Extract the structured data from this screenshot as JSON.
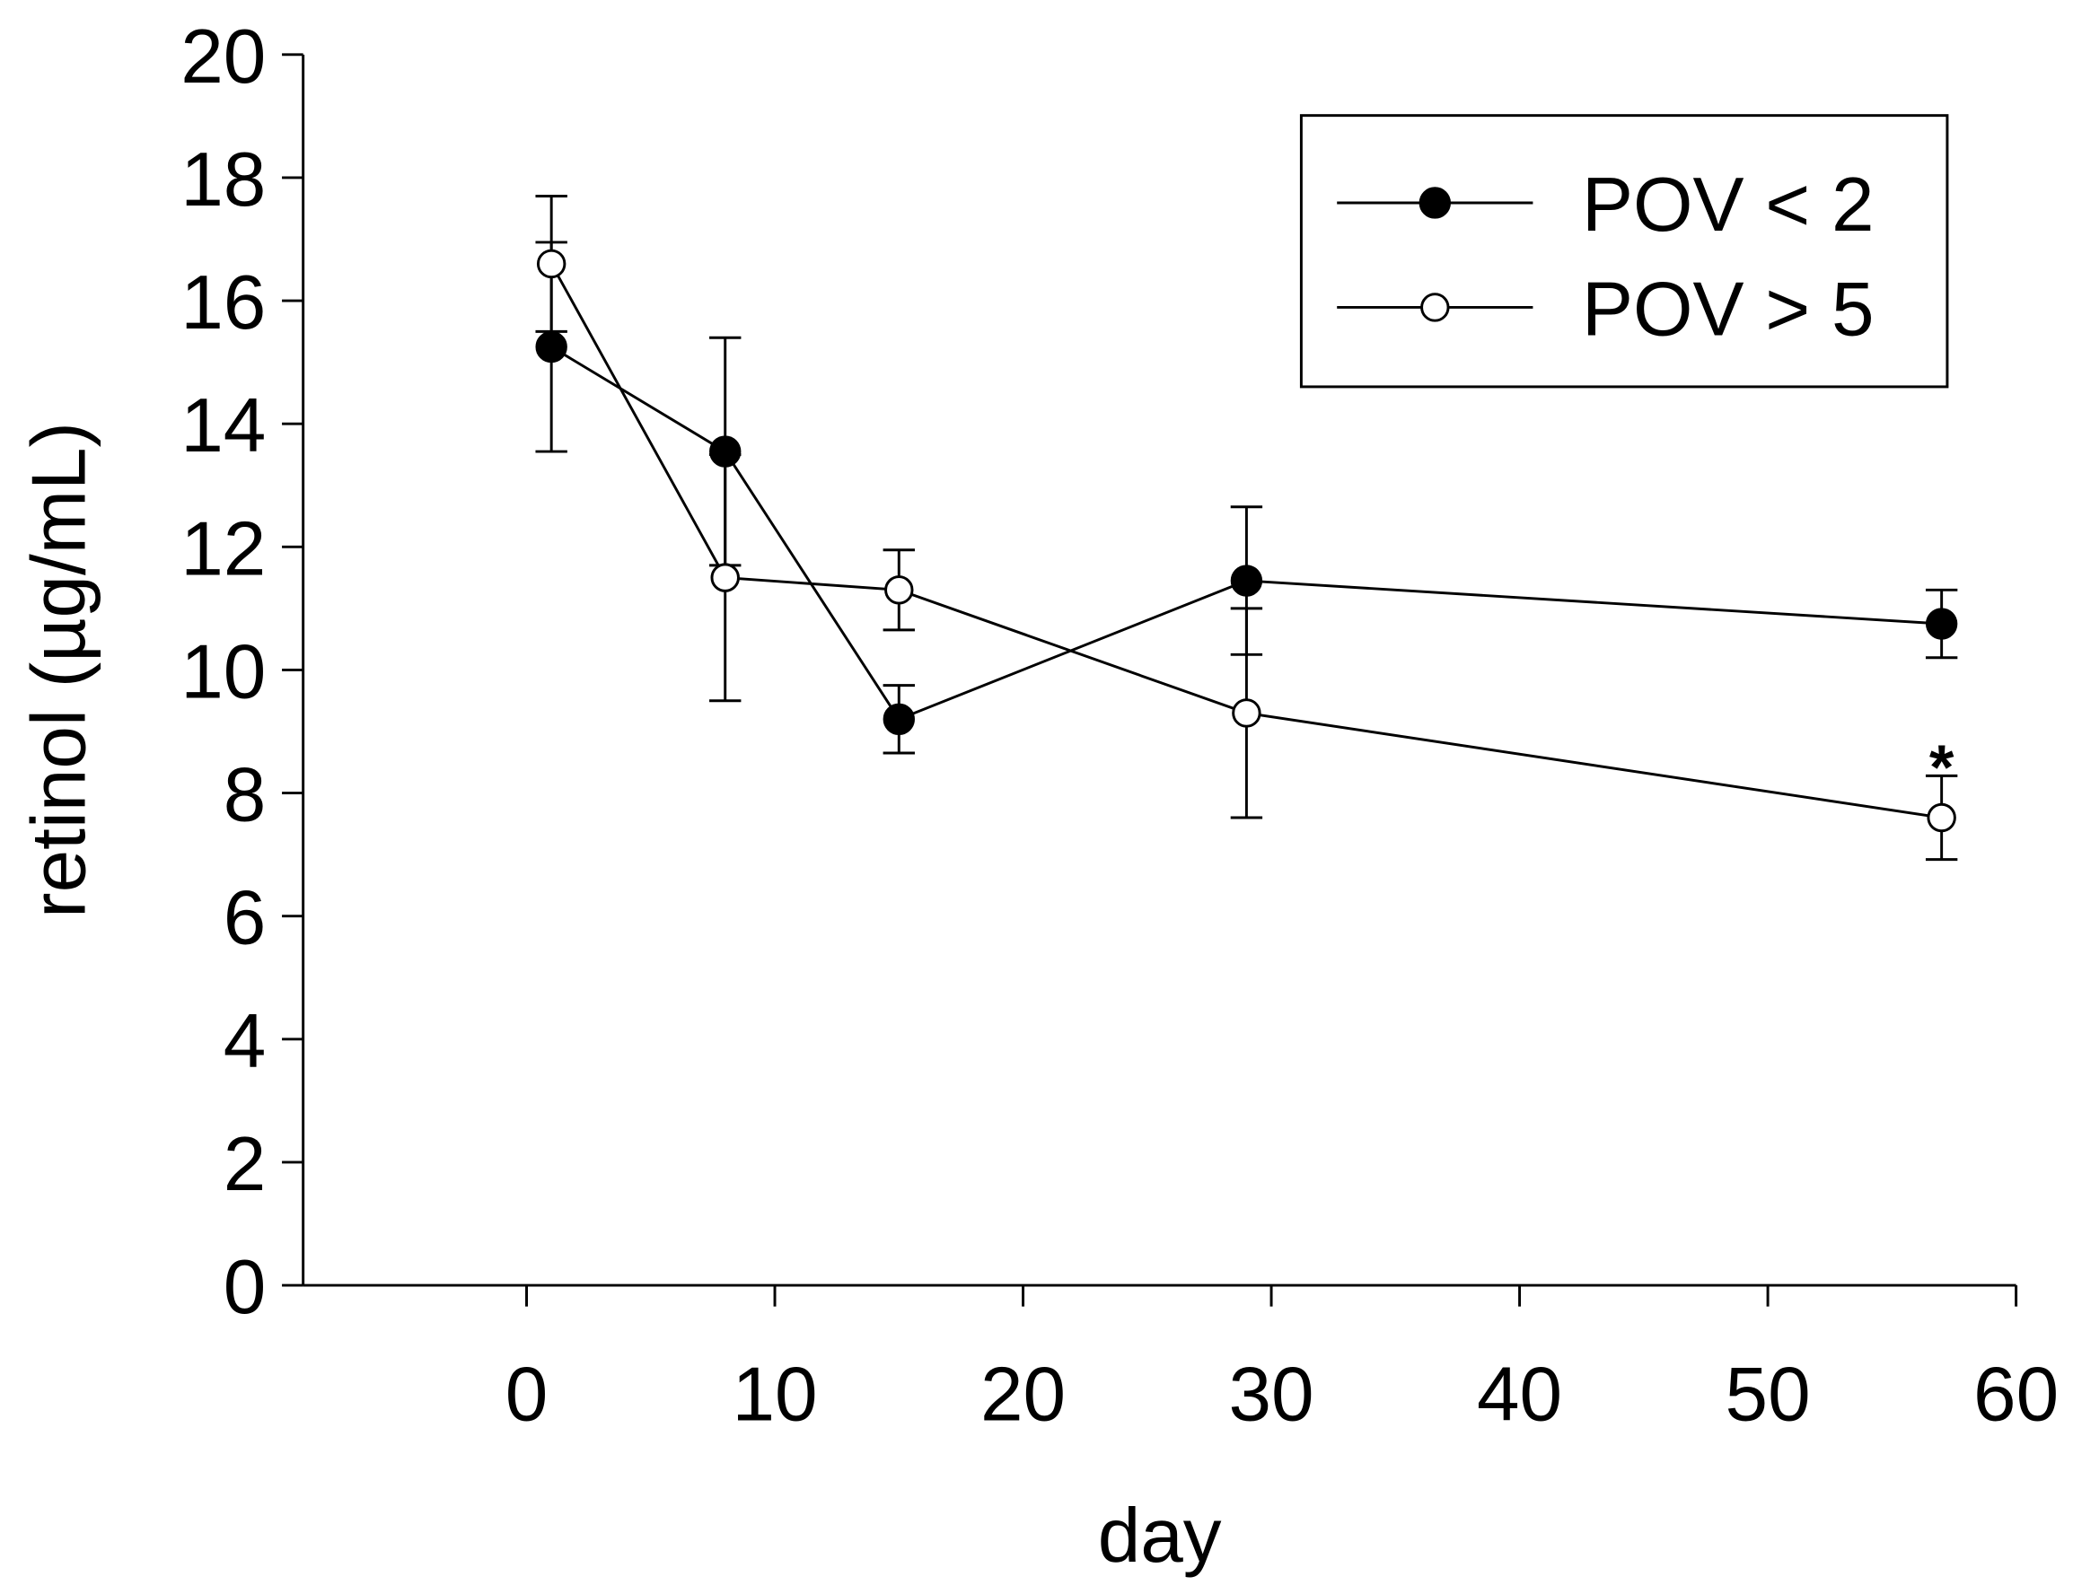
{
  "chart_data": {
    "type": "line",
    "title": "",
    "xlabel": "day",
    "ylabel": "retinol (µg/mL)",
    "xlim": [
      -9,
      60
    ],
    "ylim": [
      0,
      20
    ],
    "xticks": [
      "0",
      "10",
      "20",
      "30",
      "40",
      "50",
      "60"
    ],
    "yticks": [
      "0",
      "2",
      "4",
      "6",
      "8",
      "10",
      "12",
      "14",
      "16",
      "18",
      "20"
    ],
    "grid": false,
    "legend_position": "top-right",
    "series": [
      {
        "name": "POV < 2",
        "marker": "filled-circle",
        "x": [
          1,
          8,
          15,
          29,
          57
        ],
        "y": [
          15.25,
          13.55,
          9.2,
          11.45,
          10.75
        ],
        "error": [
          1.7,
          1.85,
          0.55,
          1.2,
          0.55
        ]
      },
      {
        "name": "POV > 5",
        "marker": "open-circle",
        "x": [
          1,
          8,
          15,
          29,
          57
        ],
        "y": [
          16.6,
          11.5,
          11.3,
          9.3,
          7.6
        ],
        "error": [
          1.1,
          2.0,
          0.65,
          1.7,
          0.68
        ]
      }
    ],
    "annotations": [
      {
        "text": "*",
        "x": 57,
        "series": "POV > 5"
      }
    ]
  }
}
